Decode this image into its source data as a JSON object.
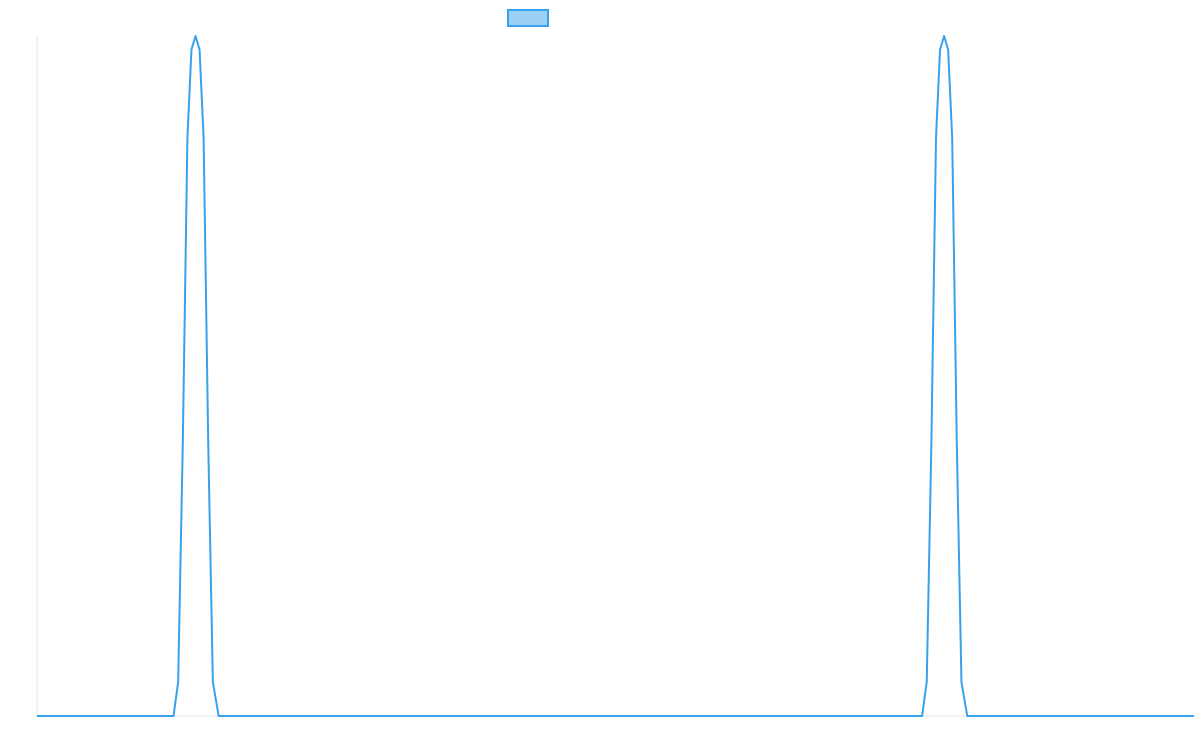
{
  "chart_data": {
    "type": "line",
    "title": "",
    "xlabel": "",
    "ylabel": "",
    "grid": false,
    "legend": {
      "position": "top-center"
    },
    "x_range": [
      0,
      1
    ],
    "ylim": [
      0,
      1
    ],
    "series": [
      {
        "color": "#36a2eb",
        "fill": "#9ad0f5",
        "points": [
          [
            0.0,
            0.0
          ],
          [
            0.118,
            0.0
          ],
          [
            0.122,
            0.05
          ],
          [
            0.126,
            0.4
          ],
          [
            0.13,
            0.85
          ],
          [
            0.1335,
            0.98
          ],
          [
            0.137,
            1.0
          ],
          [
            0.1405,
            0.98
          ],
          [
            0.144,
            0.85
          ],
          [
            0.148,
            0.4
          ],
          [
            0.152,
            0.05
          ],
          [
            0.157,
            0.0
          ],
          [
            0.765,
            0.0
          ],
          [
            0.769,
            0.05
          ],
          [
            0.773,
            0.4
          ],
          [
            0.777,
            0.85
          ],
          [
            0.7805,
            0.98
          ],
          [
            0.784,
            1.0
          ],
          [
            0.7875,
            0.98
          ],
          [
            0.791,
            0.85
          ],
          [
            0.795,
            0.4
          ],
          [
            0.799,
            0.05
          ],
          [
            0.804,
            0.0
          ],
          [
            1.0,
            0.0
          ]
        ]
      }
    ]
  }
}
